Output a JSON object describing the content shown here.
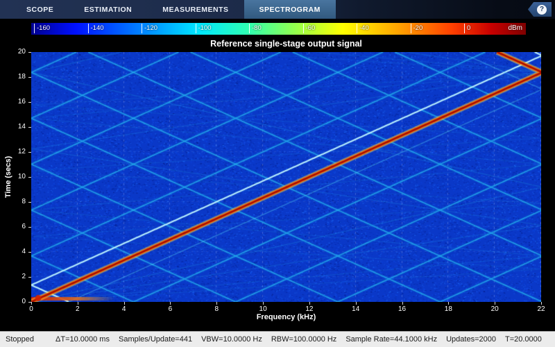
{
  "tabs": [
    {
      "label": "SCOPE",
      "active": false
    },
    {
      "label": "ESTIMATION",
      "active": false
    },
    {
      "label": "MEASUREMENTS",
      "active": false
    },
    {
      "label": "SPECTROGRAM",
      "active": true
    }
  ],
  "help_label": "?",
  "chart_data": {
    "type": "heatmap",
    "title": "Reference single-stage output signal",
    "xlabel": "Frequency (kHz)",
    "ylabel": "Time (secs)",
    "xlim": [
      0,
      22
    ],
    "ylim": [
      0,
      20
    ],
    "x_ticks": [
      0,
      2,
      4,
      6,
      8,
      10,
      12,
      14,
      16,
      18,
      20,
      22
    ],
    "y_ticks": [
      0,
      2,
      4,
      6,
      8,
      10,
      12,
      14,
      16,
      18,
      20
    ],
    "grid": "dashed",
    "colorbar": {
      "min": -160,
      "max": 0,
      "ticks": [
        -160,
        -140,
        -120,
        -100,
        -80,
        -60,
        -40,
        -20,
        0
      ],
      "unit": "dBm",
      "colormap": "jet"
    },
    "signal": {
      "kind": "linear chirp with folded harmonic aliases over blue noise floor",
      "sweep_rate_khz_per_s": 1.2,
      "nyquist_khz": 22.05,
      "alias_spacing_khz": 4.41,
      "echo_offset_s": 1.35,
      "duration_s": 20,
      "main_line": "from (0 kHz, 0 s) rising to Nyquist at ~18.4 s, folding back to ~20.1 kHz at 20 s",
      "startup_transient": "broadband red streak along t≈0.25 s from 0 to ~3.6 kHz"
    }
  },
  "status": {
    "state": "Stopped",
    "metrics": [
      "ΔT=10.0000 ms",
      "Samples/Update=441",
      "VBW=10.0000 Hz",
      "RBW=100.0000 Hz",
      "Sample Rate=44.1000 kHz",
      "Updates=2000",
      "T=20.0000"
    ]
  }
}
